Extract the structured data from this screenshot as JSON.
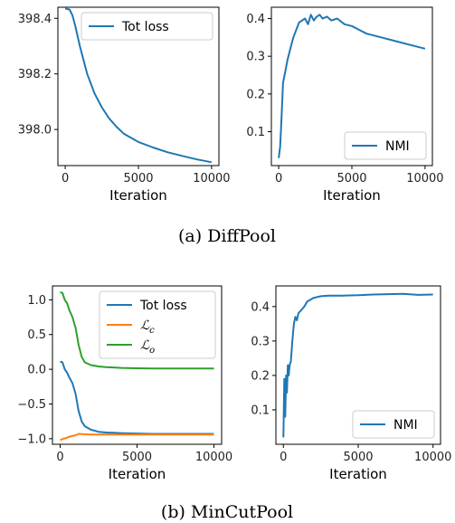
{
  "panels": [
    {
      "id": "diffpool-loss",
      "chart_data": {
        "type": "line",
        "xlabel": "Iteration",
        "ylabel": "",
        "xlim": [
          -500,
          10500
        ],
        "ylim": [
          397.87,
          398.44
        ],
        "x_ticks": [
          0,
          5000,
          10000
        ],
        "x_tick_labels": [
          "0",
          "5000",
          "10000"
        ],
        "y_ticks": [
          398.0,
          398.2,
          398.4
        ],
        "y_tick_labels": [
          "398.0",
          "398.2",
          "398.4"
        ],
        "legend_position": "top-right",
        "grid": false,
        "series": [
          {
            "name": "Tot loss",
            "color": "#1f77b4",
            "x": [
              0,
              300,
              500,
              700,
              1000,
              1500,
              2000,
              2500,
              3000,
              3500,
              4000,
              5000,
              6000,
              7000,
              8000,
              9000,
              10000
            ],
            "y": [
              398.435,
              398.432,
              398.41,
              398.37,
              398.3,
              398.2,
              398.13,
              398.08,
              398.04,
              398.01,
              397.985,
              397.955,
              397.935,
              397.918,
              397.905,
              397.892,
              397.882
            ]
          }
        ]
      }
    },
    {
      "id": "diffpool-nmi",
      "chart_data": {
        "type": "line",
        "xlabel": "Iteration",
        "ylabel": "",
        "xlim": [
          -500,
          10500
        ],
        "ylim": [
          0.01,
          0.43
        ],
        "x_ticks": [
          0,
          5000,
          10000
        ],
        "x_tick_labels": [
          "0",
          "5000",
          "10000"
        ],
        "y_ticks": [
          0.1,
          0.2,
          0.3,
          0.4
        ],
        "y_tick_labels": [
          "0.1",
          "0.2",
          "0.3",
          "0.4"
        ],
        "legend_position": "bottom-right",
        "grid": false,
        "series": [
          {
            "name": "NMI",
            "color": "#1f77b4",
            "x": [
              0,
              100,
              200,
              300,
              400,
              500,
              600,
              800,
              1000,
              1200,
              1400,
              1600,
              1800,
              2000,
              2200,
              2400,
              2600,
              2800,
              3000,
              3300,
              3600,
              4000,
              4500,
              5000,
              5500,
              6000,
              7000,
              8000,
              9000,
              10000
            ],
            "y": [
              0.03,
              0.06,
              0.14,
              0.23,
              0.25,
              0.27,
              0.29,
              0.32,
              0.35,
              0.37,
              0.39,
              0.395,
              0.4,
              0.385,
              0.41,
              0.395,
              0.405,
              0.41,
              0.4,
              0.405,
              0.395,
              0.4,
              0.385,
              0.38,
              0.37,
              0.36,
              0.35,
              0.34,
              0.33,
              0.32
            ]
          }
        ]
      }
    },
    {
      "id": "mincutpool-loss",
      "chart_data": {
        "type": "line",
        "xlabel": "Iteration",
        "ylabel": "",
        "xlim": [
          -500,
          10500
        ],
        "ylim": [
          -1.08,
          1.2
        ],
        "x_ticks": [
          0,
          5000,
          10000
        ],
        "x_tick_labels": [
          "0",
          "5000",
          "10000"
        ],
        "y_ticks": [
          -1.0,
          -0.5,
          0.0,
          0.5,
          1.0
        ],
        "y_tick_labels": [
          "−1.0",
          "−0.5",
          "0.0",
          "0.5",
          "1.0"
        ],
        "legend_position": "top-right",
        "grid": false,
        "series": [
          {
            "name": "Tot loss",
            "color": "#1f77b4",
            "x": [
              0,
              150,
              300,
              450,
              600,
              800,
              1000,
              1200,
              1400,
              1600,
              2000,
              2500,
              3000,
              4000,
              5000,
              6000,
              8000,
              10000
            ],
            "y": [
              0.11,
              0.1,
              0.0,
              -0.05,
              -0.12,
              -0.2,
              -0.35,
              -0.6,
              -0.75,
              -0.82,
              -0.87,
              -0.9,
              -0.91,
              -0.92,
              -0.925,
              -0.93,
              -0.93,
              -0.93
            ]
          },
          {
            "name": "ℒc",
            "color": "#ff7f0e",
            "x": [
              0,
              200,
              400,
              600,
              800,
              1000,
              1200,
              1500,
              2000,
              3000,
              5000,
              10000
            ],
            "y": [
              -1.02,
              -1.0,
              -0.99,
              -0.97,
              -0.96,
              -0.95,
              -0.93,
              -0.935,
              -0.94,
              -0.94,
              -0.94,
              -0.94
            ]
          },
          {
            "name": "ℒo",
            "color": "#2ca02c",
            "x": [
              0,
              150,
              300,
              450,
              600,
              800,
              1000,
              1200,
              1400,
              1600,
              2000,
              2500,
              3000,
              4000,
              5000,
              6000,
              8000,
              10000
            ],
            "y": [
              1.11,
              1.1,
              1.0,
              0.95,
              0.85,
              0.75,
              0.6,
              0.35,
              0.18,
              0.1,
              0.06,
              0.04,
              0.03,
              0.02,
              0.015,
              0.01,
              0.01,
              0.01
            ]
          }
        ]
      }
    },
    {
      "id": "mincutpool-nmi",
      "chart_data": {
        "type": "line",
        "xlabel": "Iteration",
        "ylabel": "",
        "xlim": [
          -500,
          10500
        ],
        "ylim": [
          0.0,
          0.46
        ],
        "x_ticks": [
          0,
          5000,
          10000
        ],
        "x_tick_labels": [
          "0",
          "5000",
          "10000"
        ],
        "y_ticks": [
          0.1,
          0.2,
          0.3,
          0.4
        ],
        "y_tick_labels": [
          "0.1",
          "0.2",
          "0.3",
          "0.4"
        ],
        "legend_position": "bottom-right",
        "grid": false,
        "series": [
          {
            "name": "NMI",
            "color": "#1f77b4",
            "x": [
              0,
              60,
              120,
              180,
              240,
              300,
              360,
              420,
              500,
              600,
              700,
              800,
              900,
              1000,
              1200,
              1400,
              1600,
              1800,
              2000,
              2500,
              3000,
              4000,
              5000,
              6000,
              7000,
              8000,
              9000,
              10000
            ],
            "y": [
              0.02,
              0.19,
              0.08,
              0.2,
              0.15,
              0.23,
              0.2,
              0.23,
              0.24,
              0.3,
              0.35,
              0.37,
              0.36,
              0.38,
              0.39,
              0.4,
              0.415,
              0.42,
              0.425,
              0.43,
              0.432,
              0.432,
              0.433,
              0.435,
              0.436,
              0.437,
              0.434,
              0.435
            ]
          }
        ]
      }
    }
  ],
  "captions": [
    "(a)  DiffPool",
    "(b)  MinCutPool"
  ]
}
